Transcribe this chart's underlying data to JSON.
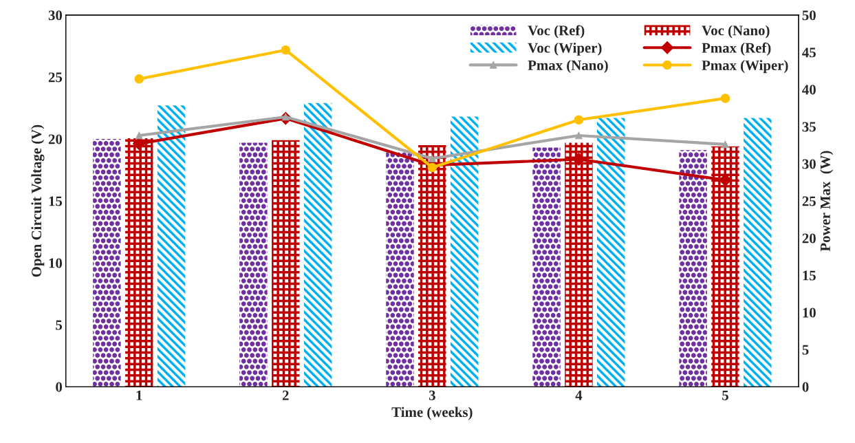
{
  "chart_data": {
    "type": "bar",
    "xlabel": "Time (weeks)",
    "ylabel": "Open Circuit Voltage (V)",
    "y2label": "Power Max  (W)",
    "categories": [
      "1",
      "2",
      "3",
      "4",
      "5"
    ],
    "ylim": [
      0,
      30
    ],
    "yticks": [
      0,
      5,
      10,
      15,
      20,
      25,
      30
    ],
    "y2lim": [
      0,
      50
    ],
    "y2ticks": [
      0,
      5,
      10,
      15,
      20,
      25,
      30,
      35,
      40,
      45,
      50
    ],
    "grid": false,
    "legend": "top right",
    "series": [
      {
        "name": "Voc (Ref)",
        "color": "#7030a0",
        "values": [
          20.0,
          19.7,
          19.0,
          19.3,
          19.1
        ]
      },
      {
        "name": "Voc (Nano)",
        "color": "#c00000",
        "values": [
          20.05,
          19.9,
          19.5,
          19.7,
          19.4
        ]
      },
      {
        "name": "Voc (Wiper)",
        "color": "#00b0f0",
        "values": [
          22.7,
          22.9,
          21.8,
          21.7,
          21.7
        ]
      },
      {
        "name": "Pmax (Ref)",
        "type": "line",
        "axis": "y2",
        "marker": "diamond",
        "color": "#c00000",
        "values": [
          32.7,
          36.1,
          29.8,
          30.6,
          27.8
        ]
      },
      {
        "name": "Pmax (Nano)",
        "type": "line",
        "axis": "y2",
        "marker": "triangle",
        "color": "#a5a5a5",
        "values": [
          33.8,
          36.3,
          30.7,
          33.8,
          32.6
        ]
      },
      {
        "name": "Pmax (Wiper)",
        "type": "line",
        "axis": "y2",
        "marker": "circle",
        "color": "#ffc000",
        "values": [
          41.4,
          45.3,
          29.5,
          35.9,
          38.8
        ]
      }
    ]
  }
}
